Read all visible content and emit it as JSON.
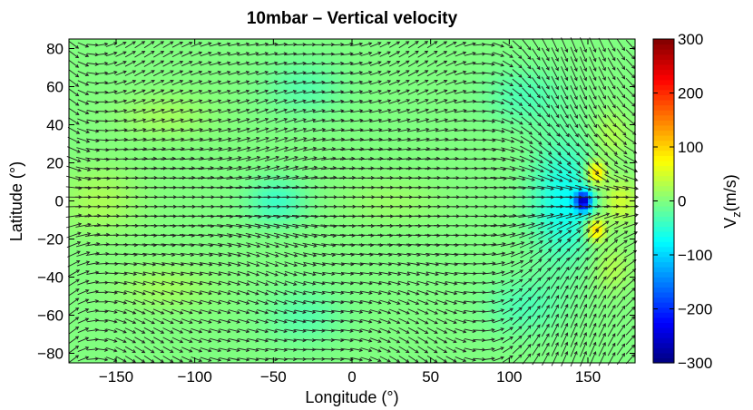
{
  "chart_data": {
    "type": "heatmap",
    "title": "10mbar – Vertical velocity",
    "xlabel": "Longitude (°)",
    "ylabel": "Latitude (°)",
    "xlim": [
      -180,
      180
    ],
    "ylim": [
      -85,
      85
    ],
    "x_ticks": [
      -150,
      -100,
      -50,
      0,
      50,
      100,
      150
    ],
    "x_tick_labels": [
      "−150",
      "−100",
      "−50",
      "0",
      "50",
      "100",
      "150"
    ],
    "y_ticks": [
      80,
      60,
      40,
      20,
      0,
      -20,
      -40,
      -60,
      -80
    ],
    "y_tick_labels": [
      "80",
      "60",
      "40",
      "20",
      "0",
      "−20",
      "−40",
      "−60",
      "−80"
    ],
    "colorbar": {
      "label_main": "V",
      "label_sub": "z",
      "label_unit": "(m/s)",
      "range": [
        -300,
        300
      ],
      "ticks": [
        300,
        200,
        100,
        0,
        -100,
        -200,
        -300
      ],
      "tick_labels": [
        "300",
        "200",
        "100",
        "0",
        "−100",
        "−200",
        "−300"
      ],
      "colormap": "jet"
    },
    "background_value": 0,
    "features": [
      {
        "lon": 147,
        "lat": 0,
        "value": -230,
        "lon_radius": 5,
        "lat_radius": 5
      },
      {
        "lon": 155,
        "lat": 15,
        "value": 110,
        "lon_radius": 6,
        "lat_radius": 6
      },
      {
        "lon": 155,
        "lat": -15,
        "value": 110,
        "lon_radius": 6,
        "lat_radius": 6
      },
      {
        "lon": 170,
        "lat": 0,
        "value": 50,
        "lon_radius": 12,
        "lat_radius": 12
      },
      {
        "lon": 135,
        "lat": 0,
        "value": -70,
        "lon_radius": 20,
        "lat_radius": 30
      },
      {
        "lon": -48,
        "lat": 0,
        "value": -40,
        "lon_radius": 18,
        "lat_radius": 12
      },
      {
        "lon": -160,
        "lat": 0,
        "value": 25,
        "lon_radius": 25,
        "lat_radius": 18
      },
      {
        "lon": 25,
        "lat": 0,
        "value": 15,
        "lon_radius": 30,
        "lat_radius": 12
      },
      {
        "lon": -120,
        "lat": 45,
        "value": 20,
        "lon_radius": 30,
        "lat_radius": 12
      },
      {
        "lon": -120,
        "lat": -45,
        "value": 20,
        "lon_radius": 30,
        "lat_radius": 12
      },
      {
        "lon": 165,
        "lat": 35,
        "value": 30,
        "lon_radius": 12,
        "lat_radius": 12
      },
      {
        "lon": 165,
        "lat": -35,
        "value": 30,
        "lon_radius": 12,
        "lat_radius": 12
      },
      {
        "lon": -30,
        "lat": 60,
        "value": -25,
        "lon_radius": 25,
        "lat_radius": 15
      },
      {
        "lon": -30,
        "lat": -60,
        "value": -25,
        "lon_radius": 25,
        "lat_radius": 15
      },
      {
        "lon": 110,
        "lat": 55,
        "value": -30,
        "lon_radius": 25,
        "lat_radius": 15
      },
      {
        "lon": 110,
        "lat": -55,
        "value": -30,
        "lon_radius": 25,
        "lat_radius": 15
      }
    ],
    "wind_field": {
      "description": "horizontal wind vectors (quiver)",
      "lon_spacing": 6,
      "lat_spacing": 5,
      "convergence_lon": 147,
      "divergence_lon": -50,
      "jet_lat_band": 30
    }
  }
}
